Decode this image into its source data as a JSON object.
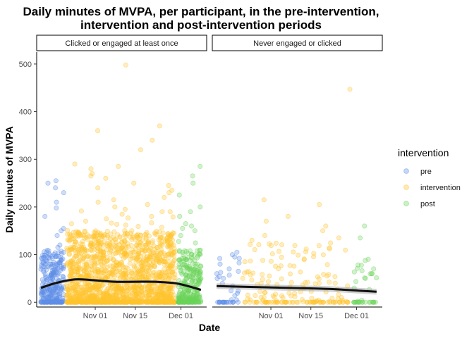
{
  "chart_data": {
    "type": "scatter",
    "title_line1": "Daily minutes of MVPA, per participant, in the pre-intervention,",
    "title_line2": "intervention and post-intervention periods",
    "xlabel": "Date",
    "ylabel": "Daily minutes of MVPA",
    "ylim": [
      -10,
      525
    ],
    "yticks": [
      0,
      100,
      200,
      300,
      400,
      500
    ],
    "x_tick_labels": [
      "Nov 01",
      "Nov 15",
      "Dec 01"
    ],
    "x_tick_days": [
      31,
      45,
      61
    ],
    "x_axis_note": "x values are days counted from Oct 01",
    "xlim": [
      10.5,
      70
    ],
    "grid": false,
    "legend": {
      "position": "right",
      "title": "intervention",
      "entries": [
        {
          "label": "pre",
          "color": "#5f8fe8"
        },
        {
          "label": "intervention",
          "color": "#ffc42e"
        },
        {
          "label": "post",
          "color": "#6bd45a"
        }
      ]
    },
    "point_alpha": 0.3,
    "smooth_color": "#111111",
    "panels": [
      {
        "strip": "Clicked or engaged at least once",
        "period_ranges": {
          "pre": [
            12,
            20
          ],
          "intervention": [
            21,
            59
          ],
          "post": [
            60,
            68
          ]
        },
        "pre_top_values": [
          255,
          250,
          240,
          230,
          210,
          198,
          180,
          150,
          140,
          120,
          115,
          108
        ],
        "intervention_top_values": [
          498,
          370,
          360,
          340,
          320,
          290,
          285,
          280,
          270,
          265,
          260,
          250,
          245,
          240,
          235,
          230,
          220,
          215,
          210,
          205,
          200,
          195,
          190,
          185,
          180,
          175,
          170
        ],
        "post_top_values": [
          285,
          265,
          250,
          225,
          200,
          190,
          180,
          165,
          160,
          155,
          150,
          140
        ],
        "smooth": [
          [
            12,
            30
          ],
          [
            17,
            40
          ],
          [
            24,
            48
          ],
          [
            31,
            46
          ],
          [
            38,
            43
          ],
          [
            45,
            43
          ],
          [
            52,
            43
          ],
          [
            59,
            40
          ],
          [
            64,
            33
          ],
          [
            68,
            26
          ]
        ],
        "smooth_se": 3
      },
      {
        "strip": "Never engaged or clicked",
        "period_ranges": {
          "pre": [
            12,
            20
          ],
          "intervention": [
            21,
            59
          ],
          "post": [
            60,
            68
          ]
        },
        "pre_top_values": [
          105,
          100,
          95,
          80,
          70,
          60,
          50
        ],
        "intervention_top_values": [
          447,
          215,
          205,
          180,
          170,
          160,
          150,
          140,
          135,
          130
        ],
        "post_top_values": [
          160,
          135,
          70,
          60,
          50
        ],
        "smooth": [
          [
            12,
            34
          ],
          [
            25,
            32
          ],
          [
            38,
            30
          ],
          [
            51,
            28
          ],
          [
            60,
            25
          ],
          [
            68,
            22
          ]
        ],
        "smooth_se": 6
      }
    ]
  }
}
